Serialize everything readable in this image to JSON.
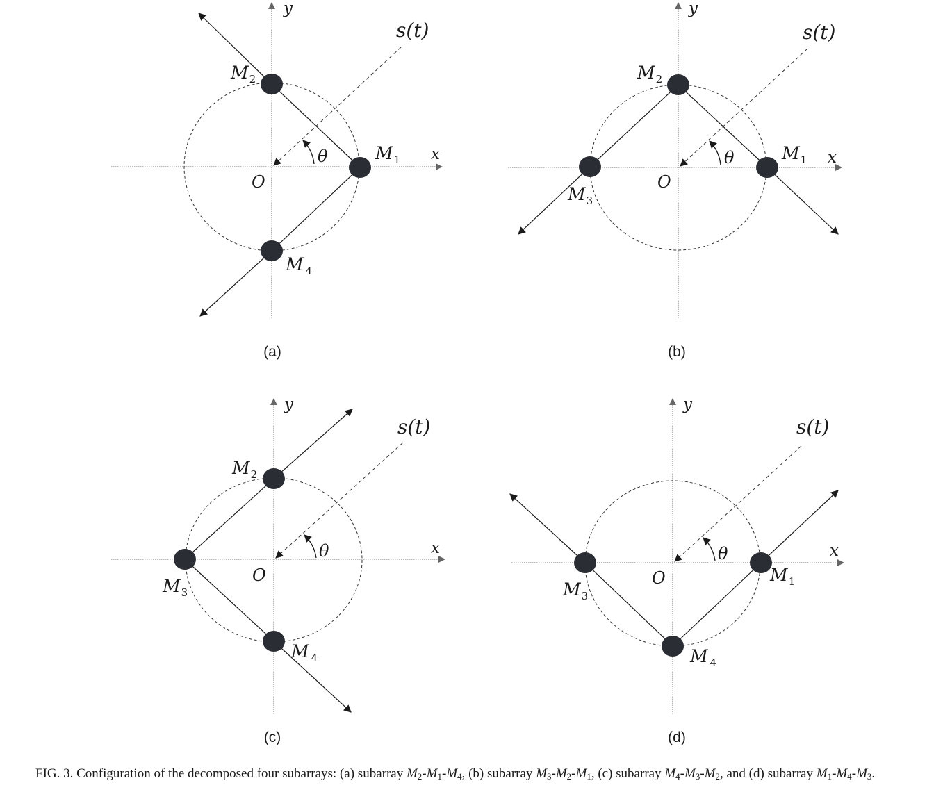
{
  "panels": [
    {
      "label": "(a)",
      "signal_label": "s(t)",
      "angle_label": "θ",
      "origin_label": "O",
      "axis_x_label": "x",
      "axis_y_label": "y",
      "mics": [
        {
          "letter": "M",
          "index": "2"
        },
        {
          "letter": "M",
          "index": "1"
        },
        {
          "letter": "M",
          "index": "4"
        }
      ]
    },
    {
      "label": "(b)",
      "signal_label": "s(t)",
      "angle_label": "θ",
      "origin_label": "O",
      "axis_x_label": "x",
      "axis_y_label": "y",
      "mics": [
        {
          "letter": "M",
          "index": "3"
        },
        {
          "letter": "M",
          "index": "2"
        },
        {
          "letter": "M",
          "index": "1"
        }
      ]
    },
    {
      "label": "(c)",
      "signal_label": "s(t)",
      "angle_label": "θ",
      "origin_label": "O",
      "axis_x_label": "x",
      "axis_y_label": "y",
      "mics": [
        {
          "letter": "M",
          "index": "4"
        },
        {
          "letter": "M",
          "index": "3"
        },
        {
          "letter": "M",
          "index": "2"
        }
      ]
    },
    {
      "label": "(d)",
      "signal_label": "s(t)",
      "angle_label": "θ",
      "origin_label": "O",
      "axis_x_label": "x",
      "axis_y_label": "y",
      "mics": [
        {
          "letter": "M",
          "index": "1"
        },
        {
          "letter": "M",
          "index": "4"
        },
        {
          "letter": "M",
          "index": "3"
        }
      ]
    }
  ],
  "caption": {
    "lead": "FIG. 3. Configuration of the decomposed four subarrays: (a) subarray ",
    "a_m1": "M",
    "a_s1": "2",
    "a_m2": "M",
    "a_s2": "1",
    "a_m3": "M",
    "a_s3": "4",
    "t1": ", (b) subarray ",
    "b_m1": "M",
    "b_s1": "3",
    "b_m2": "M",
    "b_s2": "2",
    "b_m3": "M",
    "b_s3": "1",
    "t2": ", (c) subarray ",
    "c_m1": "M",
    "c_s1": "4",
    "c_m2": "M",
    "c_s2": "3",
    "c_m3": "M",
    "c_s3": "2",
    "t3": ", and (d) subarray ",
    "d_m1": "M",
    "d_s1": "1",
    "d_m2": "M",
    "d_s2": "4",
    "d_m3": "M",
    "d_s3": "3",
    "end": ".",
    "dash": "-"
  }
}
